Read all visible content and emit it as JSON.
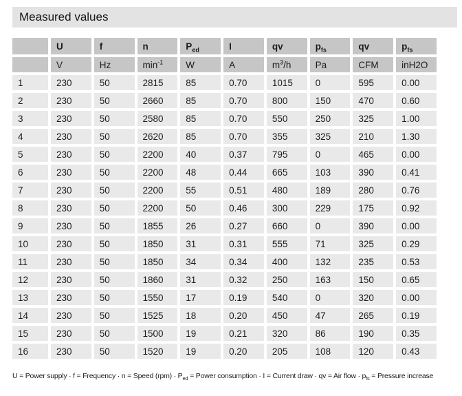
{
  "title": "Measured values",
  "colors": {
    "title_bg": "#e3e3e3",
    "header_bg": "#c6c6c6",
    "row_bg": "#e9e9e9",
    "text": "#1c1c1c",
    "background": "#ffffff"
  },
  "table": {
    "header": [
      {
        "text": ""
      },
      {
        "text": "U"
      },
      {
        "text": "f"
      },
      {
        "text": "n"
      },
      {
        "text": "P",
        "sub": "ed"
      },
      {
        "text": "I"
      },
      {
        "text": "qv"
      },
      {
        "text": "p",
        "sub": "fs"
      },
      {
        "text": "qv"
      },
      {
        "text": "p",
        "sub": "fs"
      }
    ],
    "units": [
      {
        "text": ""
      },
      {
        "text": "V"
      },
      {
        "text": "Hz"
      },
      {
        "text": "min",
        "sup": "-1"
      },
      {
        "text": "W"
      },
      {
        "text": "A"
      },
      {
        "text": "m",
        "sup": "3",
        "after": "/h"
      },
      {
        "text": "Pa"
      },
      {
        "text": "CFM"
      },
      {
        "text": "inH2O"
      }
    ],
    "rows": [
      [
        "1",
        "230",
        "50",
        "2815",
        "85",
        "0.70",
        "1015",
        "0",
        "595",
        "0.00"
      ],
      [
        "2",
        "230",
        "50",
        "2660",
        "85",
        "0.70",
        "800",
        "150",
        "470",
        "0.60"
      ],
      [
        "3",
        "230",
        "50",
        "2580",
        "85",
        "0.70",
        "550",
        "250",
        "325",
        "1.00"
      ],
      [
        "4",
        "230",
        "50",
        "2620",
        "85",
        "0.70",
        "355",
        "325",
        "210",
        "1.30"
      ],
      [
        "5",
        "230",
        "50",
        "2200",
        "40",
        "0.37",
        "795",
        "0",
        "465",
        "0.00"
      ],
      [
        "6",
        "230",
        "50",
        "2200",
        "48",
        "0.44",
        "665",
        "103",
        "390",
        "0.41"
      ],
      [
        "7",
        "230",
        "50",
        "2200",
        "55",
        "0.51",
        "480",
        "189",
        "280",
        "0.76"
      ],
      [
        "8",
        "230",
        "50",
        "2200",
        "50",
        "0.46",
        "300",
        "229",
        "175",
        "0.92"
      ],
      [
        "9",
        "230",
        "50",
        "1855",
        "26",
        "0.27",
        "660",
        "0",
        "390",
        "0.00"
      ],
      [
        "10",
        "230",
        "50",
        "1850",
        "31",
        "0.31",
        "555",
        "71",
        "325",
        "0.29"
      ],
      [
        "11",
        "230",
        "50",
        "1850",
        "34",
        "0.34",
        "400",
        "132",
        "235",
        "0.53"
      ],
      [
        "12",
        "230",
        "50",
        "1860",
        "31",
        "0.32",
        "250",
        "163",
        "150",
        "0.65"
      ],
      [
        "13",
        "230",
        "50",
        "1550",
        "17",
        "0.19",
        "540",
        "0",
        "320",
        "0.00"
      ],
      [
        "14",
        "230",
        "50",
        "1525",
        "18",
        "0.20",
        "450",
        "47",
        "265",
        "0.19"
      ],
      [
        "15",
        "230",
        "50",
        "1500",
        "19",
        "0.21",
        "320",
        "86",
        "190",
        "0.35"
      ],
      [
        "16",
        "230",
        "50",
        "1520",
        "19",
        "0.20",
        "205",
        "108",
        "120",
        "0.43"
      ]
    ]
  },
  "footer": {
    "separator": "·",
    "legend": [
      {
        "symbol": "U",
        "desc": "Power supply"
      },
      {
        "symbol": "f",
        "desc": "Frequency"
      },
      {
        "symbol": "n",
        "desc": "Speed (rpm)"
      },
      {
        "symbol": "P",
        "sub": "ed",
        "desc": "Power consumption"
      },
      {
        "symbol": "I",
        "desc": "Current draw"
      },
      {
        "symbol": "qv",
        "desc": "Air flow"
      },
      {
        "symbol": "p",
        "sub": "fs",
        "desc": "Pressure increase"
      }
    ]
  }
}
